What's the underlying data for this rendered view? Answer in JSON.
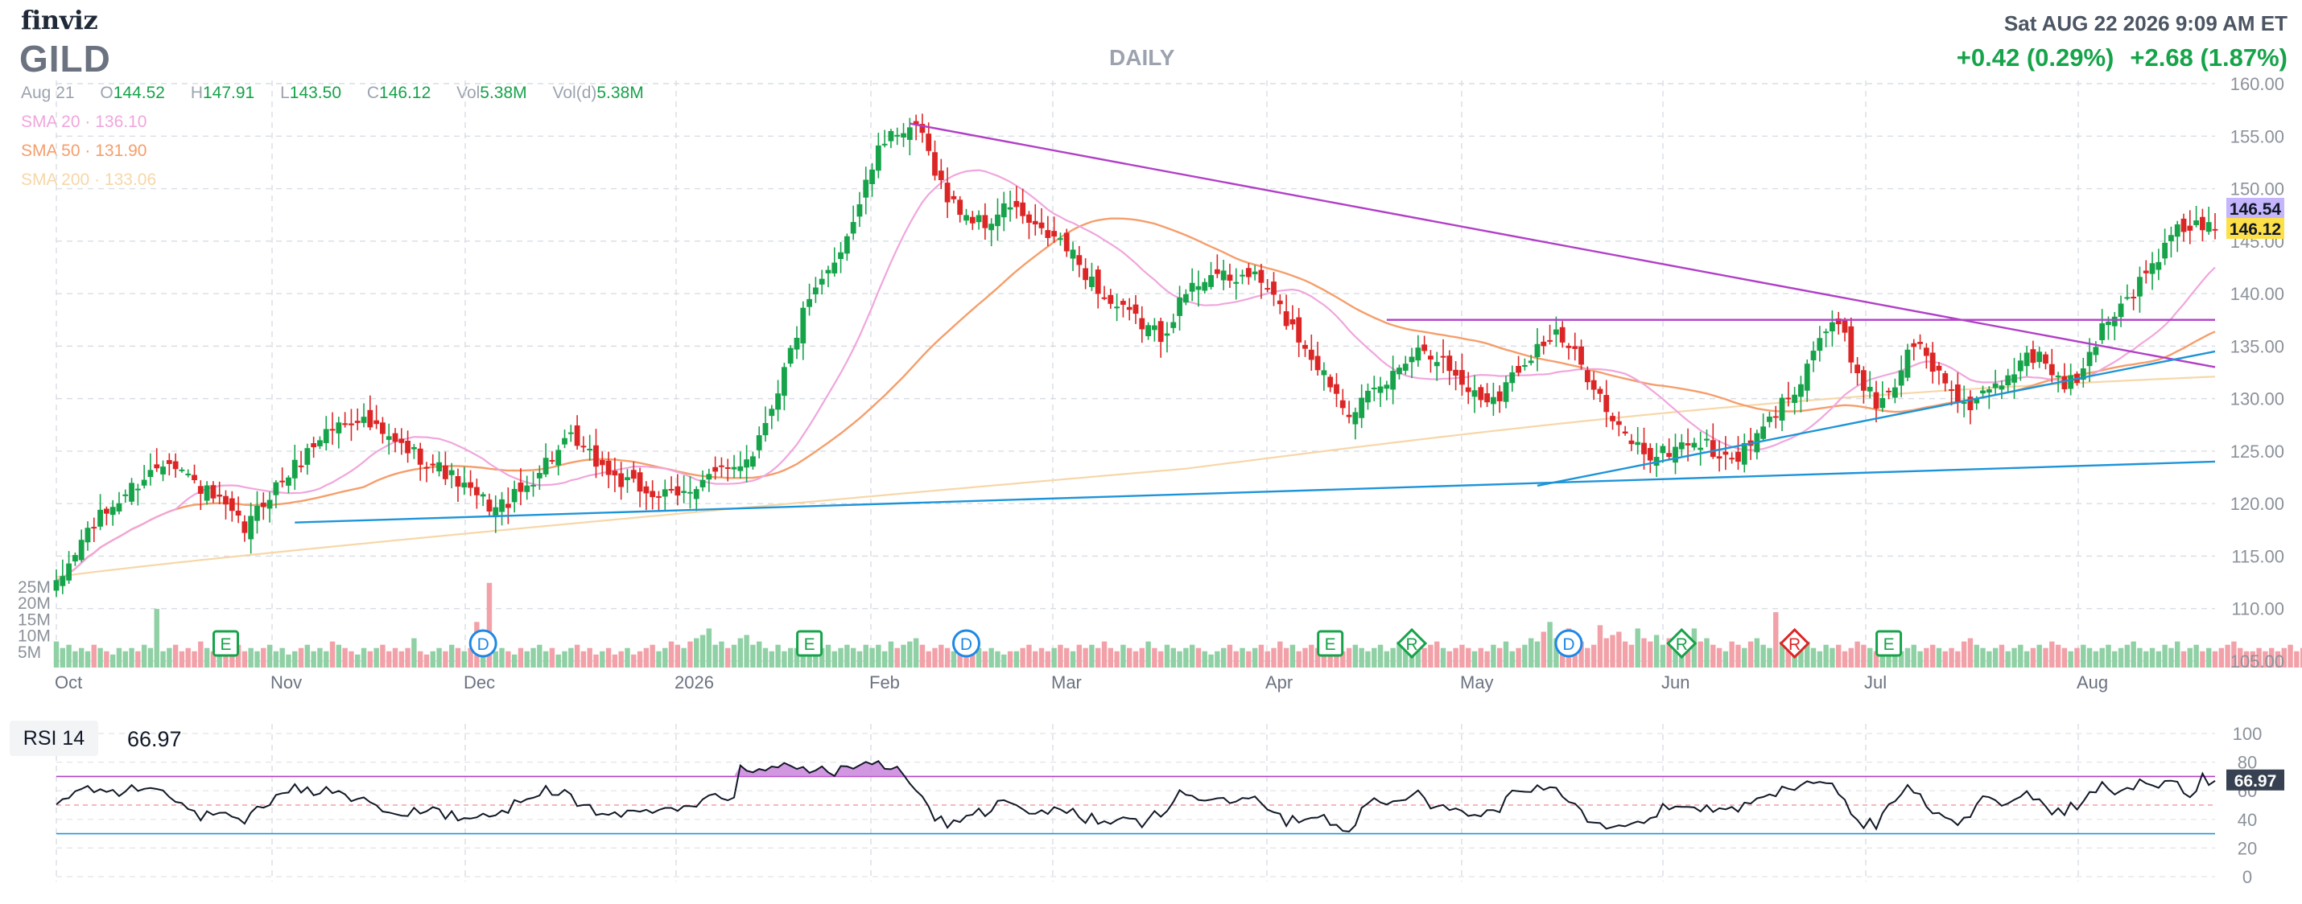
{
  "header": {
    "logo": "finviz",
    "ticker": "GILD",
    "timeframe": "DAILY",
    "datetime": "Sat AUG 22 2026 9:09 AM ET",
    "change_1": "+0.42 (0.29%)",
    "change_2": "+2.68 (1.87%)"
  },
  "ohlc": {
    "date": "Aug 21",
    "open_label": "O",
    "open": "144.52",
    "high_label": "H",
    "high": "147.91",
    "low_label": "L",
    "low": "143.50",
    "close_label": "C",
    "close": "146.12",
    "vol_label": "Vol",
    "vol": "5.38M",
    "vold_label": "Vol(d)",
    "vold": "5.38M"
  },
  "sma": [
    {
      "label": "SMA 20",
      "value": "136.10",
      "color": "#f0a6dc"
    },
    {
      "label": "SMA 50",
      "value": "131.90",
      "color": "#f59e6b"
    },
    {
      "label": "SMA 200",
      "value": "133.06",
      "color": "#f6d7a8"
    }
  ],
  "rsi": {
    "label": "RSI 14",
    "value": "66.97"
  },
  "colors": {
    "up": "#16a34a",
    "down": "#dc2626",
    "vol_up": "#8fd0a4",
    "vol_down": "#f2a1a8",
    "trend_magenta": "#b13fc7",
    "trend_blue": "#1e94d8",
    "rsi_line": "#111827"
  },
  "chart_data": {
    "type": "candlestick",
    "price_axis": {
      "ticks": [
        "160.00",
        "155.00",
        "150.00",
        "145.00",
        "140.00",
        "135.00",
        "130.00",
        "125.00",
        "120.00",
        "115.00",
        "110.00",
        "105.00"
      ],
      "ylim": [
        105,
        160
      ]
    },
    "volume_axis": {
      "ticks": [
        "25M",
        "20M",
        "15M",
        "10M",
        "5M"
      ]
    },
    "x_ticks": [
      "Oct",
      "Nov",
      "Dec",
      "2026",
      "Feb",
      "Mar",
      "Apr",
      "May",
      "Jun",
      "Jul",
      "Aug"
    ],
    "price_tags": [
      {
        "value": "146.54",
        "bg": "#c4b5fd"
      },
      {
        "value": "146.12",
        "bg": "#fde047"
      }
    ],
    "anchors": [
      [
        0,
        112
      ],
      [
        5,
        117.5
      ],
      [
        12,
        121.5
      ],
      [
        18,
        124.5
      ],
      [
        22,
        122
      ],
      [
        26,
        120
      ],
      [
        30,
        117.5
      ],
      [
        34,
        121
      ],
      [
        38,
        123.5
      ],
      [
        43,
        127
      ],
      [
        48,
        128.3
      ],
      [
        53,
        126
      ],
      [
        58,
        124.5
      ],
      [
        62,
        123
      ],
      [
        66,
        121
      ],
      [
        70,
        119.5
      ],
      [
        74,
        121
      ],
      [
        78,
        124
      ],
      [
        82,
        126
      ],
      [
        86,
        124
      ],
      [
        90,
        122
      ],
      [
        95,
        121
      ],
      [
        99,
        120.5
      ],
      [
        103,
        122.5
      ],
      [
        107,
        123
      ],
      [
        111,
        125
      ],
      [
        115,
        131
      ],
      [
        119,
        138
      ],
      [
        123,
        142
      ],
      [
        127,
        147
      ],
      [
        130,
        152
      ],
      [
        133,
        156
      ],
      [
        135,
        154.5
      ],
      [
        137,
        156
      ],
      [
        140,
        152
      ],
      [
        142,
        149
      ],
      [
        145,
        147.5
      ],
      [
        148,
        146.5
      ],
      [
        152,
        148.5
      ],
      [
        156,
        146
      ],
      [
        160,
        145
      ],
      [
        164,
        142
      ],
      [
        168,
        139
      ],
      [
        172,
        137.5
      ],
      [
        176,
        136
      ],
      [
        180,
        140
      ],
      [
        184,
        142.2
      ],
      [
        187,
        141
      ],
      [
        190,
        142
      ],
      [
        193,
        140.5
      ],
      [
        196,
        137.5
      ],
      [
        199,
        135
      ],
      [
        203,
        131.5
      ],
      [
        206,
        129
      ],
      [
        209,
        130
      ],
      [
        212,
        131.5
      ],
      [
        215,
        134
      ],
      [
        218,
        135
      ],
      [
        221,
        133.5
      ],
      [
        224,
        131.5
      ],
      [
        227,
        130
      ],
      [
        230,
        130.5
      ],
      [
        233,
        133
      ],
      [
        236,
        135
      ],
      [
        239,
        136
      ],
      [
        242,
        134
      ],
      [
        245,
        131.5
      ],
      [
        248,
        127.5
      ],
      [
        251,
        126
      ],
      [
        254,
        124.5
      ],
      [
        257,
        125
      ],
      [
        260,
        126
      ],
      [
        263,
        125.5
      ],
      [
        266,
        124
      ],
      [
        269,
        125
      ],
      [
        272,
        127
      ],
      [
        275,
        129.5
      ],
      [
        278,
        132
      ],
      [
        281,
        136
      ],
      [
        284,
        137
      ],
      [
        287,
        132.5
      ],
      [
        290,
        129.5
      ],
      [
        293,
        131.5
      ],
      [
        296,
        135.5
      ],
      [
        299,
        133
      ],
      [
        302,
        131
      ],
      [
        305,
        129
      ],
      [
        308,
        130.5
      ],
      [
        311,
        132
      ],
      [
        314,
        134.5
      ],
      [
        317,
        133.5
      ],
      [
        320,
        131
      ],
      [
        323,
        132.5
      ],
      [
        326,
        137
      ],
      [
        329,
        139
      ],
      [
        332,
        141
      ],
      [
        335,
        143.5
      ],
      [
        338,
        146
      ],
      [
        341,
        146.5
      ],
      [
        344,
        146.12
      ]
    ],
    "volume_profile": [
      8,
      6,
      7,
      5,
      6,
      5,
      7,
      6,
      5,
      4,
      6,
      5,
      6,
      5,
      7,
      6,
      18,
      5,
      6,
      7,
      5,
      6,
      5,
      8,
      6,
      5,
      4,
      5,
      6,
      7,
      5,
      6,
      5,
      6,
      7,
      5,
      6,
      4,
      5,
      6,
      7,
      5,
      6,
      5,
      8,
      7,
      6,
      5,
      4,
      6,
      5,
      6,
      7,
      5,
      6,
      5,
      6,
      9,
      5,
      4,
      5,
      6,
      5,
      7,
      6,
      5,
      6,
      14,
      9,
      26,
      5,
      6,
      5,
      4,
      6,
      5,
      6,
      7,
      5,
      6,
      4,
      5,
      6,
      7,
      5,
      6,
      4,
      5,
      6,
      4,
      5,
      6,
      4,
      5,
      6,
      7,
      5,
      6,
      8,
      7,
      6,
      8,
      9,
      10,
      12,
      7,
      8,
      6,
      7,
      9,
      10,
      7,
      8,
      6,
      5,
      7,
      5,
      6,
      6,
      7,
      6,
      5,
      6,
      7,
      5,
      6,
      7,
      6,
      5,
      7,
      6,
      7,
      5,
      8,
      6,
      7,
      8,
      9,
      7,
      5,
      6,
      7,
      6,
      5,
      6,
      5,
      7,
      6,
      5,
      6,
      5,
      4,
      5,
      5,
      6,
      7,
      5,
      6,
      5,
      6,
      7,
      6,
      5,
      7,
      6,
      7,
      6,
      8,
      6,
      5,
      7,
      6,
      5,
      6,
      8,
      6,
      5,
      7,
      6,
      5,
      6,
      7,
      6,
      5,
      4,
      5,
      6,
      7,
      5,
      6,
      5,
      6,
      7,
      5,
      6,
      8,
      6,
      7,
      5,
      6,
      7,
      6,
      5,
      6,
      4,
      5,
      6,
      7,
      6,
      5,
      6,
      7,
      5,
      6,
      8,
      6,
      5,
      7,
      6,
      7,
      8,
      6,
      5,
      6,
      7,
      6,
      5,
      6,
      5,
      7,
      6,
      8,
      5,
      6,
      7,
      9,
      8,
      11,
      14,
      9,
      10,
      12,
      7,
      8,
      6,
      7,
      13,
      9,
      10,
      11,
      8,
      7,
      12,
      9,
      8,
      10,
      7,
      9,
      8,
      6,
      7,
      12,
      8,
      9,
      7,
      6,
      5,
      8,
      7,
      6,
      8,
      9,
      7,
      6,
      17,
      8,
      7,
      6,
      7,
      8,
      6,
      5,
      7,
      6,
      7,
      5,
      6,
      8,
      7,
      6,
      5,
      6,
      7,
      6,
      5,
      6,
      7,
      5,
      6,
      7,
      6,
      5,
      6,
      5,
      8,
      9,
      7,
      6,
      5,
      6,
      7,
      5,
      6,
      7,
      5,
      6,
      7,
      6,
      8,
      7,
      6,
      5,
      6,
      7,
      6,
      5,
      6,
      7,
      5,
      6,
      7,
      8,
      6,
      5,
      6,
      5,
      7,
      6,
      8,
      5,
      6,
      7,
      5,
      6,
      5,
      6,
      7,
      8,
      6,
      5,
      5,
      6,
      5,
      6,
      5,
      6,
      7,
      5,
      6,
      7,
      8
    ],
    "events": [
      {
        "i": 27,
        "t": "E",
        "shape": "square",
        "color": "#16a34a"
      },
      {
        "i": 68,
        "t": "D",
        "shape": "circle",
        "color": "#1e88e5"
      },
      {
        "i": 120,
        "t": "E",
        "shape": "square",
        "color": "#16a34a"
      },
      {
        "i": 145,
        "t": "D",
        "shape": "circle",
        "color": "#1e88e5"
      },
      {
        "i": 203,
        "t": "E",
        "shape": "square",
        "color": "#16a34a"
      },
      {
        "i": 216,
        "t": "R",
        "shape": "diamond",
        "color": "#16a34a"
      },
      {
        "i": 241,
        "t": "D",
        "shape": "circle",
        "color": "#1e88e5"
      },
      {
        "i": 259,
        "t": "R",
        "shape": "diamond",
        "color": "#16a34a"
      },
      {
        "i": 277,
        "t": "R",
        "shape": "diamond",
        "color": "#dc2626"
      },
      {
        "i": 292,
        "t": "E",
        "shape": "square",
        "color": "#16a34a"
      }
    ],
    "trendlines": [
      {
        "color": "#b13fc7",
        "from": [
          136,
          156.2
        ],
        "to": [
          344,
          133
        ]
      },
      {
        "color": "#b13fc7",
        "from": [
          212,
          137.5
        ],
        "to": [
          344,
          137.5
        ]
      },
      {
        "color": "#1e94d8",
        "from": [
          38,
          118.2
        ],
        "to": [
          344,
          124
        ]
      },
      {
        "color": "#1e94d8",
        "from": [
          236,
          121.7
        ],
        "to": [
          344,
          134.5
        ]
      }
    ],
    "rsi_axis": {
      "ticks": [
        "100",
        "80",
        "60",
        "40",
        "20",
        "0"
      ],
      "levels": [
        70,
        50,
        30
      ]
    },
    "rsi_tag": "66.97"
  }
}
